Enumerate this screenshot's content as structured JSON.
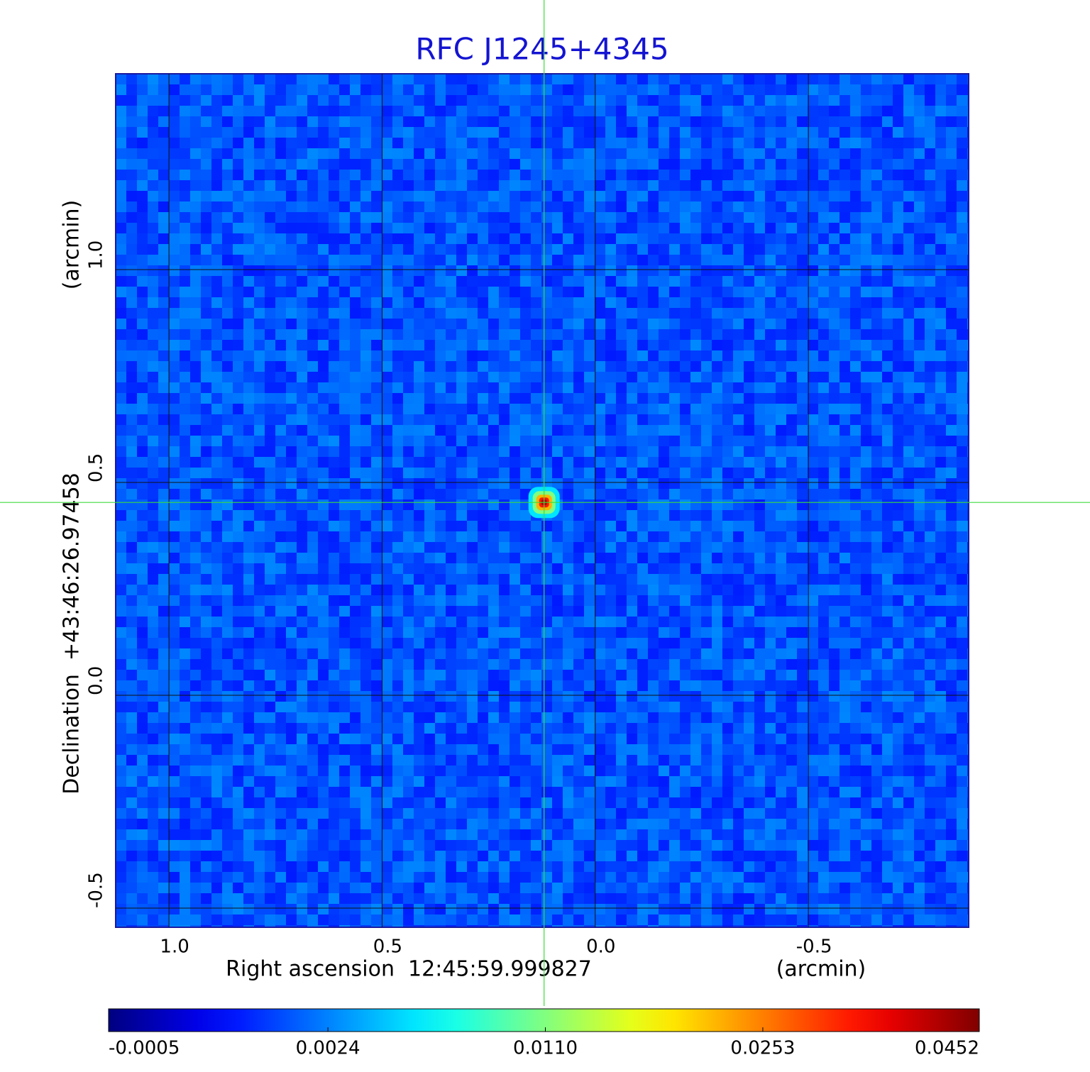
{
  "chart_data": {
    "type": "image",
    "title": "RFC J1245+4345",
    "xlabel": "Right ascension  12:45:59.999827",
    "xunit": "(arcmin)",
    "ylabel": "Declination  +43:46:26.97458",
    "yunit": "(arcmin)",
    "xlim": [
      1.125,
      -0.876
    ],
    "xticks": [
      {
        "value": 1,
        "label": "1.0"
      },
      0.5,
      {
        "value": 0,
        "label": "0.0"
      },
      -0.5
    ],
    "ylim": [
      -0.545,
      1.46
    ],
    "yticks": [
      -0.5,
      {
        "value": 0,
        "label": "0.0"
      },
      0.5,
      {
        "value": 1,
        "label": "1.0"
      }
    ],
    "grid": true,
    "crosshair": {
      "x": 0.12,
      "y": 0.453
    },
    "colormap": "jet",
    "colorbar_scale": "sqrt",
    "clim": [
      -0.0005,
      0.0452
    ],
    "cticks": [
      -0.0005,
      0.0024,
      {
        "value": 0.011,
        "label": "0.0110"
      },
      0.0253,
      0.0452
    ]
  }
}
